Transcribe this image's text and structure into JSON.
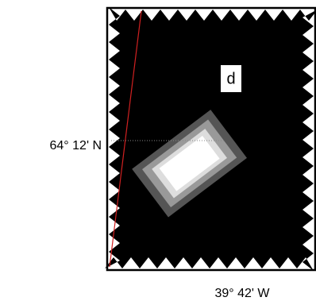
{
  "panel": {
    "label": "d"
  },
  "latitude_label": "64° 12' N",
  "longitude_label": "39° 42' W"
}
